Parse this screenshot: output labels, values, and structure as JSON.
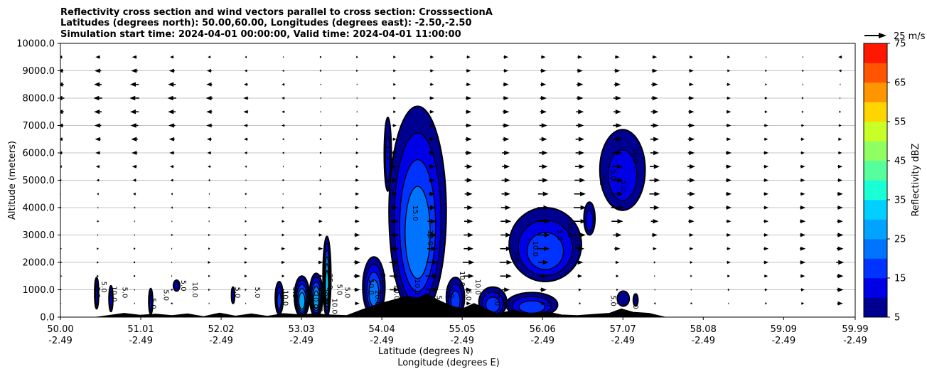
{
  "chart_data": {
    "type": "cross-section-contour",
    "title_lines": [
      "Reflectivity cross section and wind vectors parallel to cross section: CrosssectionA",
      "Latitudes (degrees north): 50.00,60.00, Longitudes (degrees east): -2.50,-2.50",
      "Simulation start time: 2024-04-01 00:00:00, Valid time: 2024-04-01 11:00:00"
    ],
    "xlabel_1": "Latitude (degrees N)",
    "xlabel_2": "Longitude (degrees E)",
    "ylabel": "Altitude (meters)",
    "x_range": [
      50.0,
      59.99
    ],
    "y_range": [
      0,
      10000
    ],
    "x_ticks": [
      {
        "lat": "50.00",
        "lon": "-2.49",
        "value": 50.0
      },
      {
        "lat": "51.01",
        "lon": "-2.49",
        "value": 51.01
      },
      {
        "lat": "52.02",
        "lon": "-2.49",
        "value": 52.02
      },
      {
        "lat": "53.03",
        "lon": "-2.49",
        "value": 53.03
      },
      {
        "lat": "54.04",
        "lon": "-2.49",
        "value": 54.04
      },
      {
        "lat": "55.05",
        "lon": "-2.49",
        "value": 55.05
      },
      {
        "lat": "56.06",
        "lon": "-2.49",
        "value": 56.06
      },
      {
        "lat": "57.07",
        "lon": "-2.49",
        "value": 57.07
      },
      {
        "lat": "58.08",
        "lon": "-2.49",
        "value": 58.08
      },
      {
        "lat": "59.09",
        "lon": "-2.49",
        "value": 59.09
      },
      {
        "lat": "59.99",
        "lon": "-2.49",
        "value": 59.99
      }
    ],
    "y_ticks": [
      {
        "label": "0.0",
        "value": 0
      },
      {
        "label": "1000.0",
        "value": 1000
      },
      {
        "label": "2000.0",
        "value": 2000
      },
      {
        "label": "3000.0",
        "value": 3000
      },
      {
        "label": "4000.0",
        "value": 4000
      },
      {
        "label": "5000.0",
        "value": 5000
      },
      {
        "label": "6000.0",
        "value": 6000
      },
      {
        "label": "7000.0",
        "value": 7000
      },
      {
        "label": "8000.0",
        "value": 8000
      },
      {
        "label": "9000.0",
        "value": 9000
      },
      {
        "label": "10000.0",
        "value": 10000
      }
    ],
    "grid": "horizontal",
    "vector_key_label": "25 m/s",
    "colorbar": {
      "label": "Reflectivity dBZ",
      "range": [
        5,
        75
      ],
      "ticks": [
        "5",
        "15",
        "25",
        "35",
        "45",
        "55",
        "65",
        "75"
      ],
      "levels": [
        5,
        10,
        15,
        20,
        25,
        30,
        35,
        40,
        45,
        50,
        55,
        60,
        65,
        70,
        75
      ],
      "colors": [
        "#000090",
        "#0000e6",
        "#0033ff",
        "#0073ff",
        "#00a3ff",
        "#00cfff",
        "#19ffd6",
        "#54ff9c",
        "#8fff61",
        "#c8ff27",
        "#ffd500",
        "#ff9500",
        "#ff5400",
        "#ff1700",
        "#b00000"
      ]
    },
    "reflectivity_cells": [
      {
        "lat_min": 50.43,
        "lat_max": 50.48,
        "alt_min": 300,
        "alt_max": 1450,
        "max_dbz": 10
      },
      {
        "lat_min": 50.61,
        "lat_max": 50.66,
        "alt_min": 200,
        "alt_max": 1150,
        "max_dbz": 10
      },
      {
        "lat_min": 51.11,
        "lat_max": 51.16,
        "alt_min": 100,
        "alt_max": 1050,
        "max_dbz": 10
      },
      {
        "lat_min": 51.42,
        "lat_max": 51.5,
        "alt_min": 950,
        "alt_max": 1350,
        "max_dbz": 5
      },
      {
        "lat_min": 52.15,
        "lat_max": 52.19,
        "alt_min": 500,
        "alt_max": 1100,
        "max_dbz": 5
      },
      {
        "lat_min": 52.7,
        "lat_max": 52.8,
        "alt_min": 100,
        "alt_max": 1300,
        "max_dbz": 15
      },
      {
        "lat_min": 52.94,
        "lat_max": 53.13,
        "alt_min": 0,
        "alt_max": 1500,
        "max_dbz": 25
      },
      {
        "lat_min": 53.13,
        "lat_max": 53.3,
        "alt_min": 0,
        "alt_max": 1600,
        "max_dbz": 25
      },
      {
        "lat_min": 53.3,
        "lat_max": 53.4,
        "alt_min": 0,
        "alt_max": 2950,
        "max_dbz": 30
      },
      {
        "lat_min": 53.8,
        "lat_max": 54.08,
        "alt_min": 0,
        "alt_max": 2200,
        "max_dbz": 20
      },
      {
        "lat_min": 54.07,
        "lat_max": 54.16,
        "alt_min": 4600,
        "alt_max": 7300,
        "max_dbz": 10
      },
      {
        "lat_min": 54.13,
        "lat_max": 54.85,
        "alt_min": 0,
        "alt_max": 7700,
        "max_dbz": 20
      },
      {
        "lat_min": 54.85,
        "lat_max": 55.08,
        "alt_min": 0,
        "alt_max": 1450,
        "max_dbz": 15
      },
      {
        "lat_min": 55.26,
        "lat_max": 55.61,
        "alt_min": 0,
        "alt_max": 1100,
        "max_dbz": 15
      },
      {
        "lat_min": 55.6,
        "lat_max": 56.25,
        "alt_min": 0,
        "alt_max": 900,
        "max_dbz": 15
      },
      {
        "lat_min": 55.64,
        "lat_max": 56.55,
        "alt_min": 1300,
        "alt_max": 4000,
        "max_dbz": 15
      },
      {
        "lat_min": 56.58,
        "lat_max": 56.72,
        "alt_min": 3000,
        "alt_max": 4200,
        "max_dbz": 10
      },
      {
        "lat_min": 56.78,
        "lat_max": 57.35,
        "alt_min": 3900,
        "alt_max": 6850,
        "max_dbz": 10
      },
      {
        "lat_min": 57.0,
        "lat_max": 57.15,
        "alt_min": 400,
        "alt_max": 950,
        "max_dbz": 5
      },
      {
        "lat_min": 57.2,
        "lat_max": 57.26,
        "alt_min": 400,
        "alt_max": 850,
        "max_dbz": 5
      }
    ],
    "contour_labels": [
      "5.0",
      "5.0",
      "10.0",
      "5.0",
      "5.0",
      "5.0",
      "5.0",
      "10.0",
      "5.0",
      "5.0",
      "10.0",
      "5.0",
      "15.0",
      "10.0",
      "5.0",
      "20.0",
      "25.0",
      "10.0",
      "5.0",
      "5.0",
      "10.0",
      "20.0",
      "5.0",
      "15.0",
      "10.0",
      "15.0",
      "10.0",
      "10.0",
      "5.0",
      "5.0",
      "10.0",
      "5.0",
      "10.0",
      "15.0",
      "5.0",
      "5.0",
      "10.0",
      "5.0",
      "5.0",
      "10.0",
      "10.0",
      "5.0",
      "5.0",
      "5.0",
      "10.0",
      "5.0",
      "5.0"
    ],
    "wind_vectors": {
      "lat": [
        50.0,
        50.47,
        50.93,
        51.4,
        51.87,
        52.33,
        52.8,
        53.27,
        53.73,
        54.2,
        54.67,
        55.13,
        55.6,
        56.07,
        56.53,
        57.0,
        57.47,
        57.93,
        58.4,
        58.87,
        59.33,
        59.8
      ],
      "altitude": [
        500,
        1000,
        1500,
        2000,
        2500,
        3000,
        3500,
        4000,
        4500,
        5000,
        5500,
        6000,
        6500,
        7000,
        7500,
        8000,
        8500,
        9000,
        9500
      ],
      "u_ms": [
        [
          2,
          0,
          -1,
          0,
          1,
          1,
          2,
          3,
          5,
          9,
          12,
          5,
          6,
          5,
          2,
          1,
          -2,
          0,
          1,
          2,
          3,
          6
        ],
        [
          3,
          1,
          -1,
          0,
          2,
          2,
          3,
          4,
          6,
          10,
          13,
          7,
          8,
          7,
          3,
          2,
          -1,
          1,
          2,
          3,
          4,
          7
        ],
        [
          4,
          2,
          0,
          1,
          2,
          3,
          3,
          5,
          7,
          10,
          13,
          11,
          12,
          9,
          5,
          3,
          1,
          2,
          3,
          4,
          5,
          7
        ],
        [
          4,
          2,
          0,
          1,
          3,
          3,
          4,
          5,
          7,
          10,
          12,
          12,
          13,
          11,
          7,
          4,
          2,
          3,
          4,
          5,
          6,
          8
        ],
        [
          3,
          2,
          0,
          1,
          2,
          3,
          4,
          5,
          6,
          9,
          10,
          10,
          12,
          13,
          9,
          6,
          4,
          4,
          4,
          5,
          6,
          7
        ],
        [
          2,
          1,
          -1,
          0,
          2,
          2,
          3,
          4,
          6,
          9,
          10,
          10,
          11,
          14,
          12,
          9,
          6,
          5,
          5,
          5,
          6,
          7
        ],
        [
          1,
          0,
          -1,
          -1,
          1,
          2,
          3,
          4,
          5,
          8,
          9,
          9,
          11,
          13,
          13,
          12,
          8,
          6,
          5,
          5,
          6,
          6
        ],
        [
          0,
          -1,
          -2,
          -2,
          0,
          1,
          2,
          3,
          5,
          7,
          8,
          9,
          10,
          12,
          13,
          13,
          10,
          7,
          6,
          5,
          6,
          6
        ],
        [
          -1,
          -2,
          -3,
          -2,
          -1,
          0,
          1,
          2,
          4,
          6,
          7,
          8,
          9,
          11,
          12,
          13,
          11,
          8,
          6,
          5,
          5,
          6
        ],
        [
          -2,
          -3,
          -4,
          -3,
          -2,
          -1,
          0,
          2,
          4,
          6,
          7,
          8,
          9,
          10,
          11,
          12,
          11,
          8,
          6,
          5,
          5,
          5
        ],
        [
          -3,
          -4,
          -5,
          -4,
          -3,
          -2,
          -1,
          1,
          3,
          5,
          7,
          8,
          8,
          9,
          10,
          11,
          10,
          8,
          6,
          5,
          5,
          5
        ],
        [
          -4,
          -5,
          -6,
          -5,
          -4,
          -3,
          -2,
          0,
          3,
          5,
          6,
          7,
          8,
          9,
          9,
          10,
          9,
          7,
          6,
          5,
          4,
          4
        ],
        [
          -5,
          -6,
          -7,
          -6,
          -5,
          -4,
          -2,
          0,
          2,
          4,
          6,
          7,
          7,
          8,
          9,
          9,
          9,
          7,
          5,
          4,
          4,
          4
        ],
        [
          -6,
          -7,
          -8,
          -7,
          -6,
          -4,
          -3,
          -1,
          2,
          4,
          5,
          6,
          7,
          8,
          8,
          9,
          8,
          7,
          5,
          4,
          3,
          3
        ],
        [
          -7,
          -8,
          -9,
          -8,
          -6,
          -5,
          -3,
          -1,
          1,
          3,
          5,
          6,
          7,
          7,
          8,
          8,
          8,
          6,
          5,
          3,
          2,
          2
        ],
        [
          -8,
          -9,
          -10,
          -9,
          -7,
          -5,
          -3,
          -1,
          1,
          3,
          5,
          6,
          6,
          7,
          7,
          8,
          7,
          6,
          4,
          3,
          2,
          1
        ],
        [
          -7,
          -8,
          -9,
          -8,
          -6,
          -4,
          -3,
          -1,
          1,
          3,
          4,
          5,
          6,
          6,
          7,
          7,
          7,
          5,
          4,
          2,
          1,
          -1
        ],
        [
          -6,
          -7,
          -7,
          -6,
          -5,
          -3,
          -2,
          0,
          2,
          3,
          4,
          5,
          5,
          6,
          6,
          6,
          6,
          5,
          3,
          2,
          0,
          -3
        ],
        [
          -4,
          -5,
          -5,
          -4,
          -3,
          -2,
          -1,
          0,
          2,
          3,
          4,
          4,
          5,
          5,
          5,
          5,
          5,
          4,
          3,
          1,
          -1,
          -4
        ]
      ]
    },
    "terrain": [
      {
        "lat": 50.0,
        "alt": 0
      },
      {
        "lat": 50.45,
        "alt": 0
      },
      {
        "lat": 50.6,
        "alt": 60
      },
      {
        "lat": 50.8,
        "alt": 140
      },
      {
        "lat": 51.0,
        "alt": 70
      },
      {
        "lat": 51.2,
        "alt": 110
      },
      {
        "lat": 51.4,
        "alt": 60
      },
      {
        "lat": 51.6,
        "alt": 120
      },
      {
        "lat": 51.8,
        "alt": 20
      },
      {
        "lat": 52.0,
        "alt": 150
      },
      {
        "lat": 52.2,
        "alt": 40
      },
      {
        "lat": 52.4,
        "alt": 120
      },
      {
        "lat": 52.6,
        "alt": 30
      },
      {
        "lat": 52.8,
        "alt": 130
      },
      {
        "lat": 53.0,
        "alt": 90
      },
      {
        "lat": 53.2,
        "alt": 120
      },
      {
        "lat": 53.4,
        "alt": 80
      },
      {
        "lat": 53.6,
        "alt": 60
      },
      {
        "lat": 53.8,
        "alt": 280
      },
      {
        "lat": 54.0,
        "alt": 480
      },
      {
        "lat": 54.2,
        "alt": 640
      },
      {
        "lat": 54.35,
        "alt": 760
      },
      {
        "lat": 54.5,
        "alt": 700
      },
      {
        "lat": 54.6,
        "alt": 860
      },
      {
        "lat": 54.75,
        "alt": 620
      },
      {
        "lat": 54.9,
        "alt": 420
      },
      {
        "lat": 55.05,
        "alt": 300
      },
      {
        "lat": 55.2,
        "alt": 500
      },
      {
        "lat": 55.35,
        "alt": 300
      },
      {
        "lat": 55.5,
        "alt": 120
      },
      {
        "lat": 55.7,
        "alt": 260
      },
      {
        "lat": 55.9,
        "alt": 110
      },
      {
        "lat": 56.1,
        "alt": 200
      },
      {
        "lat": 56.3,
        "alt": 80
      },
      {
        "lat": 56.5,
        "alt": 60
      },
      {
        "lat": 56.7,
        "alt": 100
      },
      {
        "lat": 56.9,
        "alt": 140
      },
      {
        "lat": 57.05,
        "alt": 300
      },
      {
        "lat": 57.2,
        "alt": 180
      },
      {
        "lat": 57.4,
        "alt": 140
      },
      {
        "lat": 57.6,
        "alt": 0
      },
      {
        "lat": 59.99,
        "alt": 0
      }
    ]
  }
}
